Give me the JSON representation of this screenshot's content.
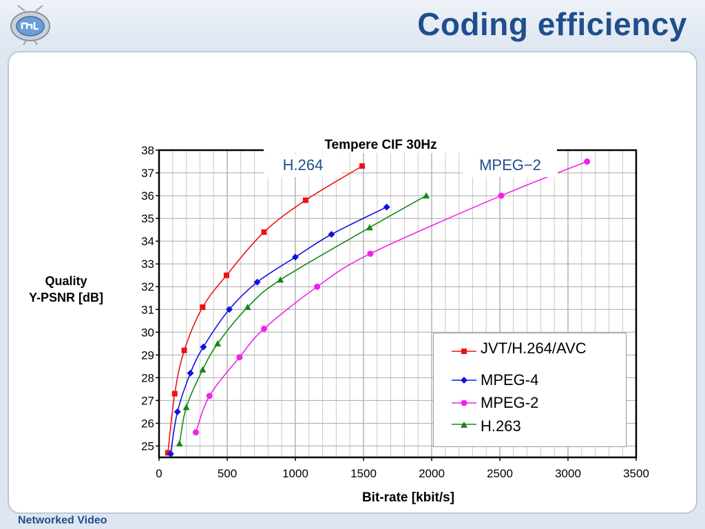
{
  "slide": {
    "title": "Coding efficiency",
    "footer": "Networked Video",
    "logo_icon": "ml-tv-logo-icon",
    "accent_color": "#1f4e8c"
  },
  "callouts": {
    "left": "H.264",
    "right": "MPEG−2"
  },
  "chart_data": {
    "type": "line",
    "title": "Tempere CIF 30Hz",
    "xlabel": "Bit-rate [kbit/s]",
    "ylabel": "Quality\nY-PSNR [dB]",
    "ylabel_lines": [
      "Quality",
      "Y-PSNR [dB]"
    ],
    "xlim": [
      0,
      3500
    ],
    "ylim": [
      24.5,
      38
    ],
    "x_ticks": [
      0,
      500,
      1000,
      1500,
      2000,
      2500,
      3000,
      3500
    ],
    "y_ticks": [
      25,
      26,
      27,
      28,
      29,
      30,
      31,
      32,
      33,
      34,
      35,
      36,
      37,
      38
    ],
    "grid": true,
    "legend_position": "lower-right",
    "series": [
      {
        "name": "JVT/H.264/AVC",
        "color": "#ee1111",
        "marker": "square",
        "x": [
          65,
          115,
          185,
          320,
          495,
          770,
          1075,
          1490
        ],
        "y": [
          24.7,
          27.3,
          29.2,
          31.1,
          32.5,
          34.4,
          35.8,
          37.3
        ]
      },
      {
        "name": "MPEG-4",
        "color": "#1111dd",
        "marker": "diamond",
        "x": [
          85,
          135,
          230,
          325,
          515,
          720,
          1000,
          1265,
          1670
        ],
        "y": [
          24.65,
          26.5,
          28.2,
          29.35,
          31.0,
          32.2,
          33.3,
          34.3,
          35.5
        ]
      },
      {
        "name": "MPEG-2",
        "color": "#ee22ee",
        "marker": "circle",
        "x": [
          270,
          370,
          590,
          770,
          1160,
          1550,
          2510,
          3140
        ],
        "y": [
          25.6,
          27.2,
          28.9,
          30.15,
          32.0,
          33.45,
          36.0,
          37.5
        ]
      },
      {
        "name": "H.263",
        "color": "#118811",
        "marker": "triangle",
        "x": [
          150,
          200,
          320,
          430,
          650,
          890,
          1545,
          1960
        ],
        "y": [
          25.1,
          26.7,
          28.35,
          29.5,
          31.1,
          32.3,
          34.6,
          36.0
        ]
      }
    ]
  }
}
